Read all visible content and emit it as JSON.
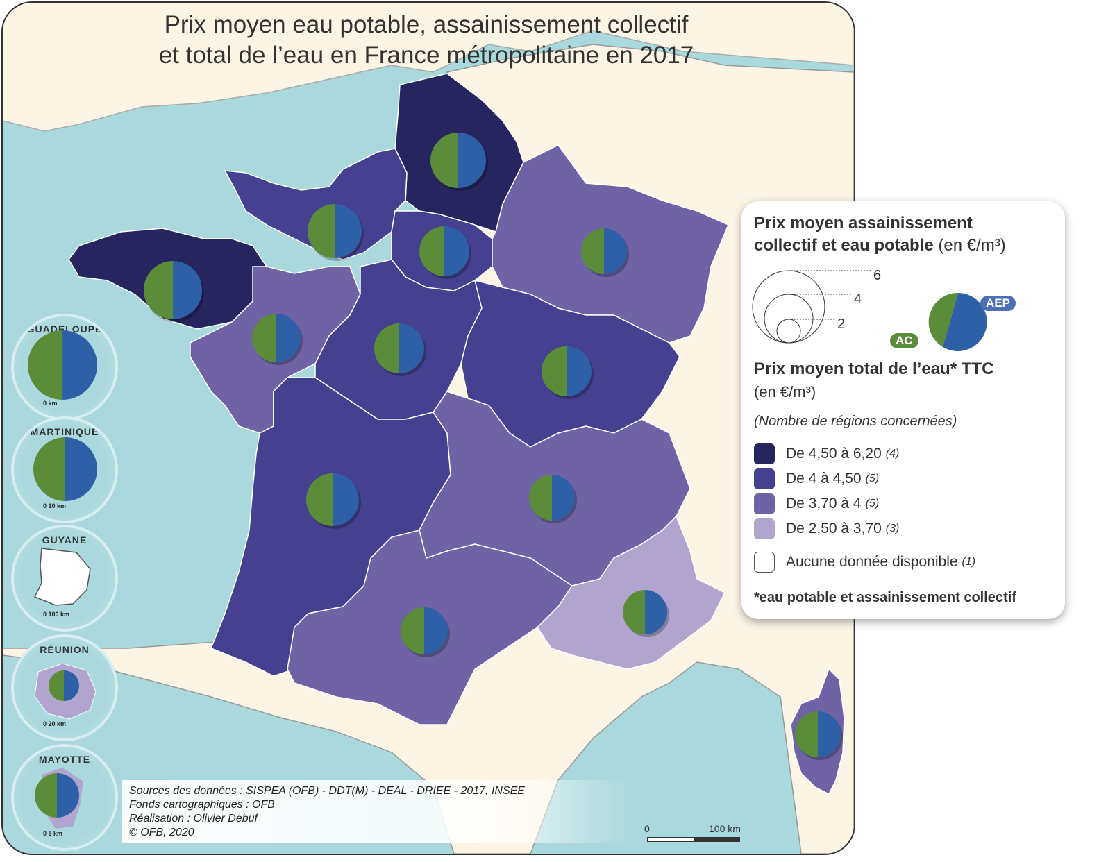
{
  "title": {
    "line1": "Prix moyen eau potable, assainissement collectif",
    "line2": "et total de l’eau en France métropolitaine en 2017"
  },
  "colors": {
    "sea": "#a9d9dc",
    "land_other": "#fcf5e6",
    "class1": "#272560",
    "class2": "#45408f",
    "class3": "#6f63a6",
    "class4": "#b1a5cf",
    "ac_green": "#5b8c3a",
    "aep_blue": "#2e60a8"
  },
  "legend": {
    "size_title_bold": "Prix moyen assainissement collectif et eau potable",
    "size_title_line1": "Prix moyen assainissement",
    "size_title_line2": "collectif et eau potable",
    "size_unit": "(en €/m³)",
    "circle_values": [
      "6",
      "4",
      "2"
    ],
    "tag_ac": "AC",
    "tag_aep": "AEP",
    "total_title": "Prix moyen total de l’eau* TTC",
    "total_unit": "(en €/m³)",
    "count_note": "(Nombre de régions concernées)",
    "classes": [
      {
        "label": "De 4,50 à 6,20",
        "count": "(4)",
        "color": "#272560"
      },
      {
        "label": "De 4 à 4,50",
        "count": "(5)",
        "color": "#45408f"
      },
      {
        "label": "De 3,70 à 4",
        "count": "(5)",
        "color": "#6f63a6"
      },
      {
        "label": "De 2,50 à 3,70",
        "count": "(3)",
        "color": "#b1a5cf"
      }
    ],
    "no_data": {
      "label": "Aucune donnée disponible",
      "count": "(1)"
    },
    "footnote": "*eau potable et assainissement collectif"
  },
  "dom": [
    {
      "name": "GUADELOUPE",
      "scale": "0       km"
    },
    {
      "name": "MARTINIQUE",
      "scale": "0    10 km"
    },
    {
      "name": "GUYANE",
      "scale": "0   100 km"
    },
    {
      "name": "RÉUNION",
      "scale": "0    20 km"
    },
    {
      "name": "MAYOTTE",
      "scale": "0     5 km"
    }
  ],
  "sources": [
    "Sources des données : SISPEA (OFB) - DDT(M) - DEAL - DRIEE - 2017, INSEE",
    "Fonds cartographiques : OFB",
    "Réalisation : Olivier Debuf",
    "© OFB, 2020"
  ],
  "scale": {
    "zero": "0",
    "label": "100 km"
  }
}
